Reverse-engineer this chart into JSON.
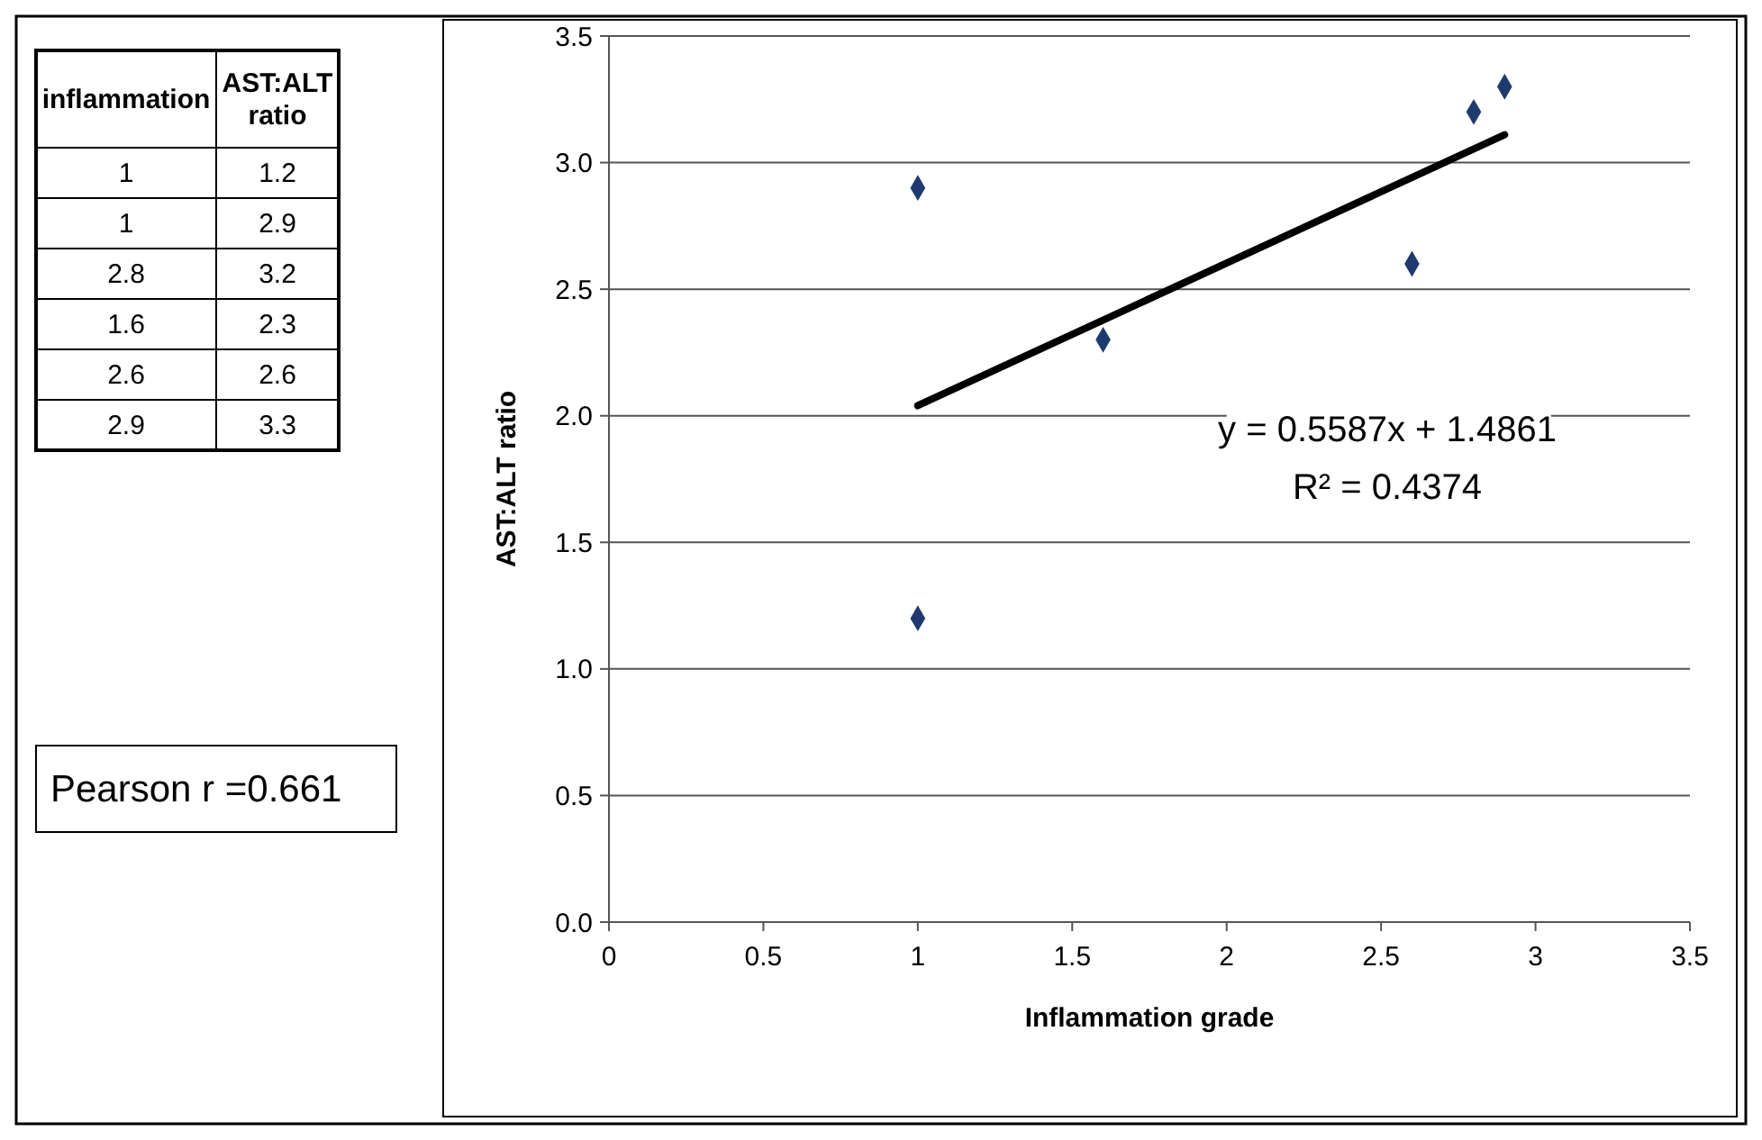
{
  "chart_data": [
    {
      "type": "other",
      "annotations": [
        "inflammation",
        "AST:ALT ratio",
        "1",
        "1.2",
        "1",
        "2.9",
        "2.8",
        "3.2",
        "1.6",
        "2.3",
        "2.6",
        "2.6",
        "2.9",
        "3.3"
      ]
    },
    {
      "type": "scatter",
      "xlabel": "Inflammation grade",
      "ylabel": "AST:ALT ratio",
      "xlim": [
        0,
        3.5
      ],
      "xticks": [
        0,
        0.5,
        1,
        1.5,
        2,
        2.5,
        3,
        3.5
      ],
      "ylim": [
        0,
        3.5
      ],
      "yticks": [
        {
          "value": 0,
          "label": "0.0"
        },
        {
          "value": 0.5,
          "label": "0.5"
        },
        {
          "value": 1,
          "label": "1.0"
        },
        {
          "value": 1.5,
          "label": "1.5"
        },
        {
          "value": 2,
          "label": "2.0"
        },
        {
          "value": 2.5,
          "label": "2.5"
        },
        {
          "value": 3,
          "label": "3.0"
        },
        {
          "value": 3.5,
          "label": "3.5"
        }
      ],
      "grid": "y",
      "marker": "diamond",
      "series": [
        {
          "type": "scatter",
          "color": "#1f3a6e",
          "x": [
            1,
            1,
            2.8,
            1.6,
            2.6,
            2.9
          ],
          "values": [
            1.2,
            2.9,
            3.2,
            2.3,
            2.6,
            3.3
          ]
        },
        {
          "type": "line",
          "color": "#000000",
          "marker": "none",
          "x": [
            1,
            2.9
          ],
          "values": [
            2.04,
            3.11
          ]
        }
      ],
      "annotations": [
        "y = 0.5587x + 1.4861",
        "R² = 0.4374",
        "Pearson r =0.661"
      ]
    }
  ]
}
